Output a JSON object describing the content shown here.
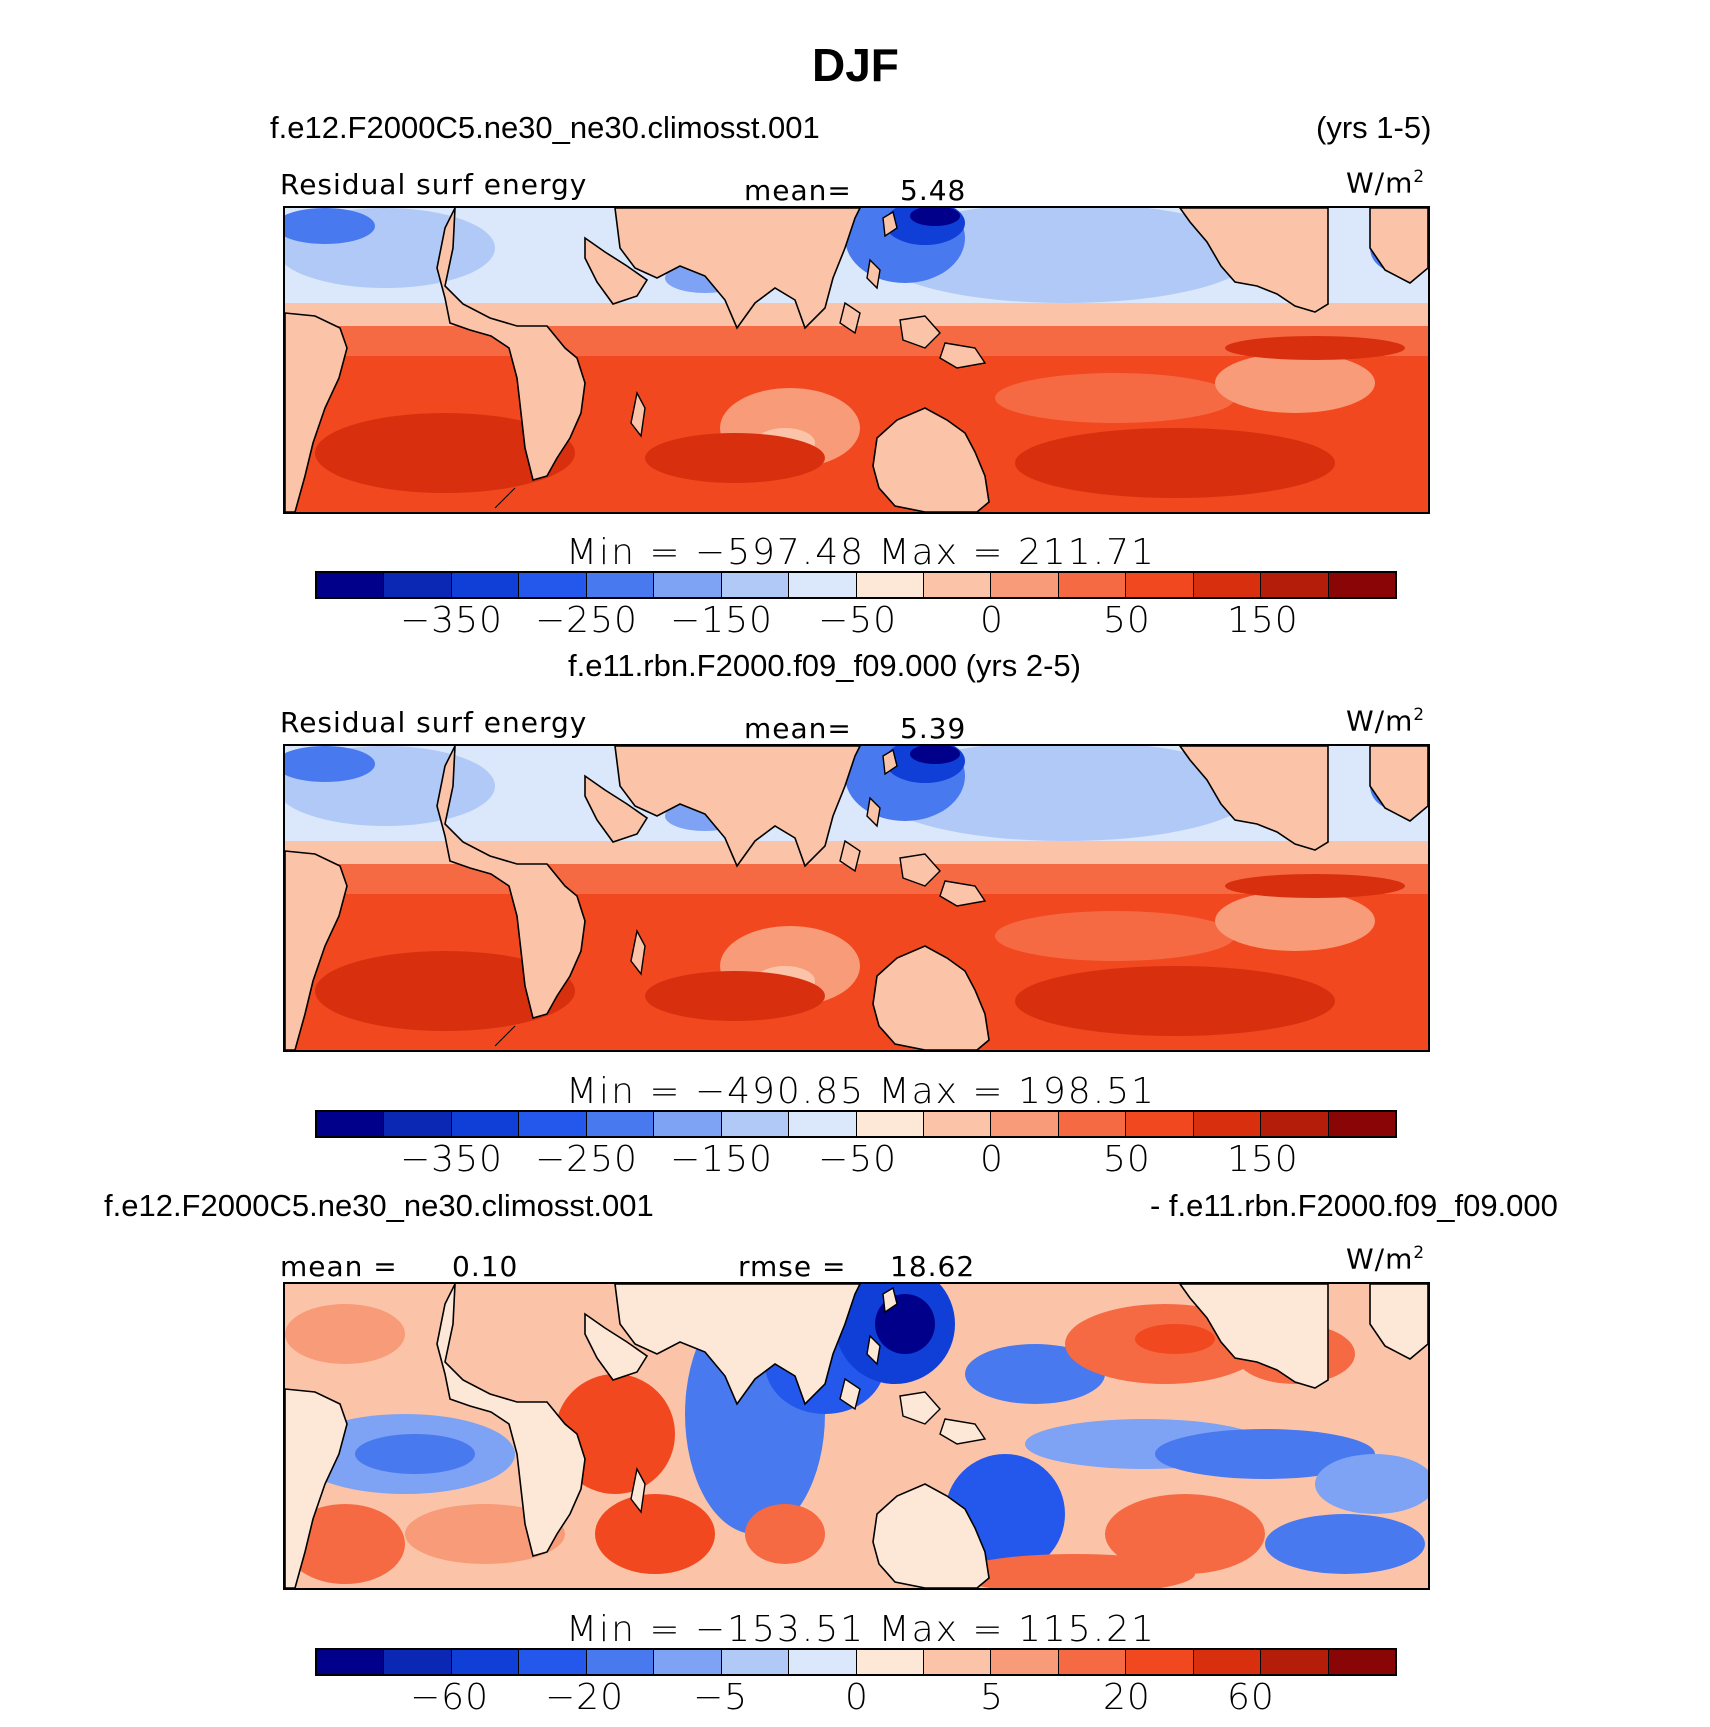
{
  "title": "DJF",
  "panels": [
    {
      "case_left": "f.e12.F2000C5.ne30_ne30.climosst.001",
      "case_right": "(yrs 1-5)",
      "variable": "Residual surf energy",
      "stat_label": "mean=",
      "stat_value": "5.48",
      "units": "W/m",
      "units_sup": "2",
      "minmax": "Min = −597.48  Max = 211.71",
      "ticks": [
        "−350",
        "−250",
        "−150",
        "−50",
        "0",
        "50",
        "150"
      ],
      "style": "field"
    },
    {
      "case_center": "f.e11.rbn.F2000.f09_f09.000 (yrs 2-5)",
      "variable": "Residual surf energy",
      "stat_label": "mean=",
      "stat_value": "5.39",
      "units": "W/m",
      "units_sup": "2",
      "minmax": "Min = −490.85  Max = 198.51",
      "ticks": [
        "−350",
        "−250",
        "−150",
        "−50",
        "0",
        "50",
        "150"
      ],
      "style": "field"
    },
    {
      "case_left": "f.e12.F2000C5.ne30_ne30.climosst.001",
      "case_right": "- f.e11.rbn.F2000.f09_f09.000",
      "stat_label": "mean =",
      "stat_value": "0.10",
      "stat2_label": "rmse =",
      "stat2_value": "18.62",
      "units": "W/m",
      "units_sup": "2",
      "minmax": "Min = −153.51  Max = 115.21",
      "ticks": [
        "−60",
        "−20",
        "−5",
        "0",
        "5",
        "20",
        "60"
      ],
      "style": "diff"
    }
  ],
  "colormap": [
    "#00008b",
    "#0a28b4",
    "#0f3fd6",
    "#2457ec",
    "#4979ef",
    "#7ea2f4",
    "#b1c9f7",
    "#dbe7fa",
    "#fde8d8",
    "#fbc4a9",
    "#f89b78",
    "#f56a43",
    "#f2481f",
    "#d8300f",
    "#b31d0a",
    "#8a0606"
  ]
}
